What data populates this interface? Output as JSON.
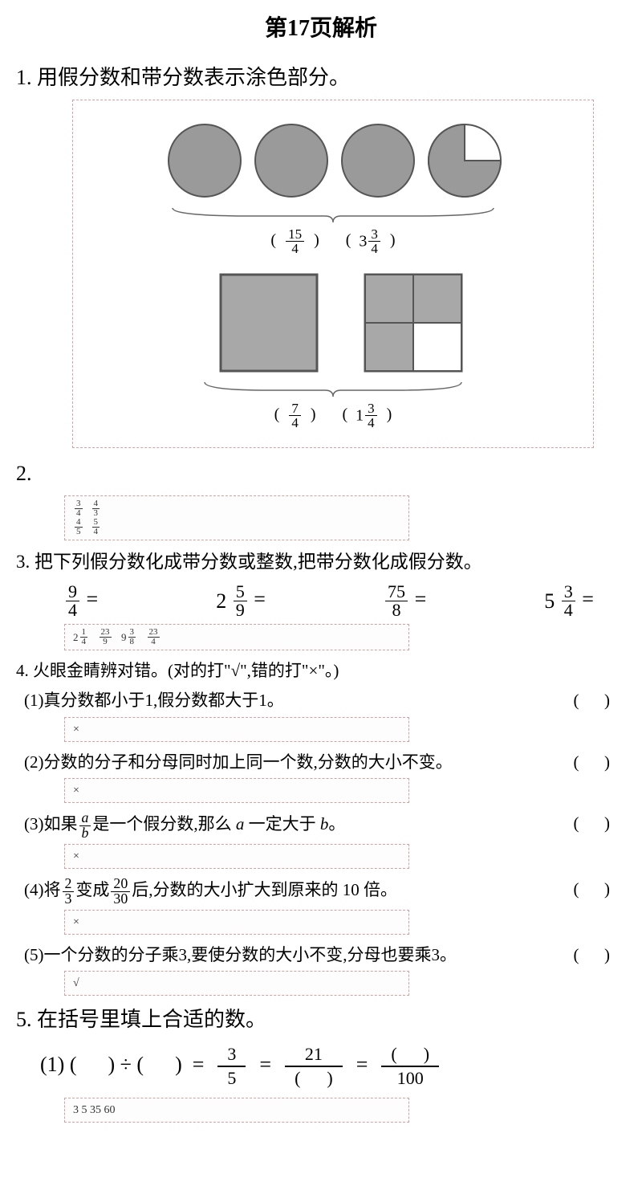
{
  "title": "第17页解析",
  "q1": {
    "prompt": "1.  用假分数和带分数表示涂色部分。",
    "circles": {
      "count": 4,
      "last_slice_missing": 1,
      "fill": "#9a9a9a",
      "stroke": "#555",
      "improper": {
        "num": "15",
        "den": "4"
      },
      "mixed": {
        "whole": "3",
        "num": "3",
        "den": "4"
      }
    },
    "squares": {
      "fill": "#a8a8a8",
      "stroke": "#555",
      "improper": {
        "num": "7",
        "den": "4"
      },
      "mixed": {
        "whole": "1",
        "num": "3",
        "den": "4"
      }
    }
  },
  "q2": {
    "label": "2.",
    "answers": [
      [
        {
          "num": "3",
          "den": "4"
        },
        {
          "num": "4",
          "den": "3"
        }
      ],
      [
        {
          "num": "4",
          "den": "5"
        },
        {
          "num": "5",
          "den": "4"
        }
      ]
    ]
  },
  "q3": {
    "prompt": "3.  把下列假分数化成带分数或整数,把带分数化成假分数。",
    "items": [
      {
        "lhs_num": "9",
        "lhs_den": "4",
        "lhs_whole": ""
      },
      {
        "lhs_num": "5",
        "lhs_den": "9",
        "lhs_whole": "2"
      },
      {
        "lhs_num": "75",
        "lhs_den": "8",
        "lhs_whole": ""
      },
      {
        "lhs_num": "3",
        "lhs_den": "4",
        "lhs_whole": "5"
      }
    ],
    "answers": [
      {
        "whole": "2",
        "num": "1",
        "den": "4"
      },
      {
        "whole": "",
        "num": "23",
        "den": "9"
      },
      {
        "whole": "9",
        "num": "3",
        "den": "8"
      },
      {
        "whole": "",
        "num": "23",
        "den": "4"
      }
    ]
  },
  "q4": {
    "prompt": "4.  火眼金睛辨对错。(对的打\"√\",错的打\"×\"。)",
    "items": [
      {
        "n": "(1)",
        "text": "真分数都小于1,假分数都大于1。",
        "ans": "×"
      },
      {
        "n": "(2)",
        "text": "分数的分子和分母同时加上同一个数,分数的大小不变。",
        "ans": "×"
      },
      {
        "n": "(3)",
        "text_pre": "如果",
        "frac": {
          "num": "a",
          "den": "b"
        },
        "text_post": "是一个假分数,那么 a 一定大于 b。",
        "ans": "×",
        "ital": true
      },
      {
        "n": "(4)",
        "text_pre": "将",
        "frac1": {
          "num": "2",
          "den": "3"
        },
        "mid": "变成",
        "frac2": {
          "num": "20",
          "den": "30"
        },
        "text_post": "后,分数的大小扩大到原来的 10 倍。",
        "ans": "×"
      },
      {
        "n": "(5)",
        "text": "一个分数的分子乘3,要使分数的大小不变,分母也要乘3。",
        "ans": "√"
      }
    ]
  },
  "q5": {
    "prompt": "5.  在括号里填上合适的数。",
    "eq": {
      "n": "(1)",
      "f1": {
        "num": "3",
        "den": "5"
      },
      "f2_num": "21",
      "f3_den": "100"
    },
    "answers": "3   5   35   60"
  }
}
